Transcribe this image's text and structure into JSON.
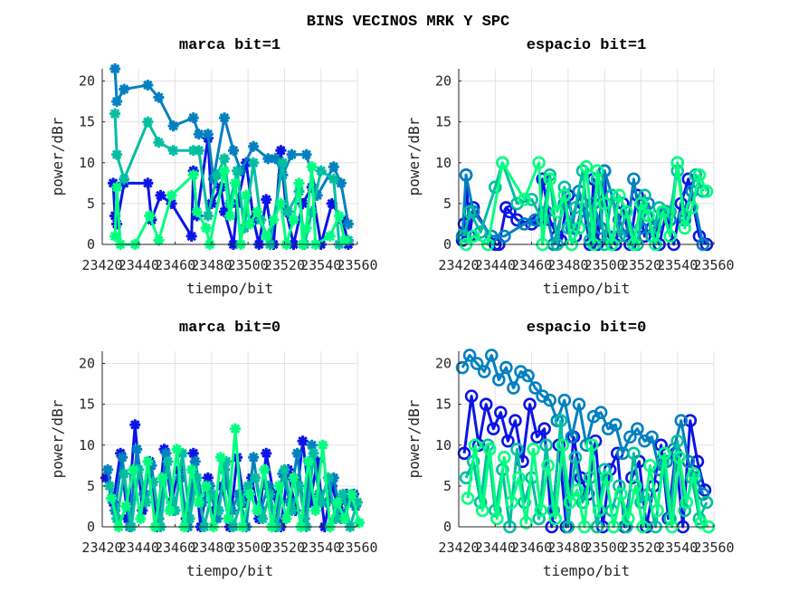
{
  "figure_title": "BINS VECINOS MRK Y SPC",
  "colors": [
    "#0a14e6",
    "#0080c0",
    "#00bfa0",
    "#00ff80"
  ],
  "chart_data": [
    {
      "type": "line",
      "title": "marca bit=1",
      "xlabel": "tiempo/bit",
      "ylabel": "power/dBr",
      "marker": "asterisk",
      "xlim": [
        23420,
        23560
      ],
      "ylim": [
        0,
        21.5
      ],
      "xticks": [
        "23420",
        "23440",
        "23460",
        "23480",
        "23500",
        "23520",
        "23540",
        "23560"
      ],
      "yticks": [
        "0",
        "5",
        "10",
        "15",
        "20"
      ],
      "grid": true,
      "series": [
        {
          "x": [
            23426,
            23427,
            23428,
            23432,
            23445,
            23447,
            23452,
            23458,
            23469,
            23470,
            23472,
            23478,
            23480,
            23485,
            23487,
            23492,
            23494,
            23499,
            23503,
            23506,
            23510,
            23514,
            23518,
            23521,
            23525,
            23530,
            23535,
            23540,
            23546,
            23552,
            23555
          ],
          "y": [
            7.5,
            3.5,
            2.5,
            7.5,
            7.5,
            3,
            6,
            5,
            1,
            9,
            3.5,
            13,
            5,
            7,
            4,
            0,
            5,
            10,
            3,
            0,
            5.5,
            0,
            11.5,
            4,
            0,
            5,
            7,
            0,
            5,
            3,
            0
          ]
        },
        {
          "x": [
            23427,
            23428,
            23432,
            23445,
            23451,
            23459,
            23470,
            23473,
            23478,
            23481,
            23487,
            23492,
            23496,
            23503,
            23511,
            23515,
            23519,
            23524,
            23532,
            23538,
            23547,
            23551,
            23555
          ],
          "y": [
            21.5,
            17.5,
            19,
            19.5,
            18,
            14.5,
            15.5,
            13.5,
            13.5,
            8,
            15.5,
            11.5,
            9,
            12,
            10.5,
            10.5,
            8.5,
            11,
            11,
            6,
            9.5,
            7.5,
            2.5
          ]
        },
        {
          "x": [
            23427,
            23428,
            23432,
            23445,
            23451,
            23459,
            23470,
            23473,
            23478,
            23483,
            23487,
            23490,
            23494,
            23498,
            23503,
            23507,
            23512,
            23519,
            23522,
            23528,
            23531,
            23535,
            23540,
            23547,
            23550,
            23555
          ],
          "y": [
            16,
            11,
            8,
            15,
            12.5,
            11.5,
            11.5,
            11.5,
            3.5,
            8.5,
            10.5,
            5,
            9,
            2,
            10,
            3,
            0,
            10,
            4,
            6.5,
            0,
            4,
            9,
            8,
            0,
            0.5
          ]
        },
        {
          "x": [
            23427,
            23428,
            23430,
            23438,
            23446,
            23451,
            23458,
            23470,
            23472,
            23477,
            23479,
            23487,
            23490,
            23493,
            23496,
            23499,
            23501,
            23505,
            23510,
            23514,
            23518,
            23521,
            23525,
            23528,
            23530,
            23532,
            23535,
            23537,
            23545,
            23550,
            23553
          ],
          "y": [
            1,
            7,
            0,
            0,
            3.5,
            0.5,
            6,
            8.5,
            4,
            2,
            0,
            9,
            3.5,
            7.5,
            0,
            6,
            2.5,
            4,
            1,
            3,
            5,
            0,
            3,
            7.5,
            0,
            2,
            9.5,
            0,
            1,
            3.5,
            0.5
          ]
        }
      ]
    },
    {
      "type": "line",
      "title": "espacio bit=1",
      "xlabel": "tiempo/bit",
      "ylabel": "power/dBr",
      "marker": "circle",
      "xlim": [
        23420,
        23560
      ],
      "ylim": [
        0,
        21.5
      ],
      "xticks": [
        "23420",
        "23440",
        "23460",
        "23480",
        "23500",
        "23520",
        "23540",
        "23560"
      ],
      "yticks": [
        "0",
        "5",
        "10",
        "15",
        "20"
      ],
      "grid": true,
      "series": [
        {
          "x": [
            23422,
            23423,
            23424,
            23426,
            23428,
            23440,
            23442,
            23446,
            23448,
            23452,
            23460,
            23464,
            23466,
            23470,
            23474,
            23476,
            23480,
            23484,
            23488,
            23492,
            23494,
            23496,
            23500,
            23502,
            23506,
            23510,
            23514,
            23518,
            23522,
            23526,
            23530,
            23534,
            23538,
            23542,
            23546,
            23552,
            23556
          ],
          "y": [
            0.5,
            2.5,
            8.5,
            1,
            4.5,
            0,
            0,
            4.5,
            4,
            3,
            2.5,
            3,
            8,
            3,
            1,
            0.5,
            6,
            1,
            5,
            0,
            8,
            0,
            9,
            1,
            0,
            5,
            0,
            6,
            1,
            2,
            0,
            4,
            0,
            5,
            8,
            1,
            0
          ]
        },
        {
          "x": [
            23422,
            23424,
            23428,
            23438,
            23445,
            23456,
            23462,
            23468,
            23472,
            23478,
            23482,
            23486,
            23490,
            23494,
            23498,
            23500,
            23504,
            23508,
            23512,
            23516,
            23520,
            23524,
            23528,
            23532,
            23536,
            23540,
            23544,
            23548,
            23554
          ],
          "y": [
            1,
            8.5,
            4,
            1,
            1,
            2.5,
            3,
            4,
            0,
            5,
            2,
            6.5,
            3,
            5,
            2,
            9,
            6,
            3,
            1,
            8,
            2,
            5,
            2,
            4,
            3,
            10,
            3,
            6.5,
            0
          ]
        },
        {
          "x": [
            23423,
            23426,
            23432,
            23440,
            23444,
            23452,
            23460,
            23466,
            23470,
            23474,
            23478,
            23480,
            23484,
            23488,
            23492,
            23496,
            23500,
            23504,
            23508,
            23512,
            23518,
            23522,
            23526,
            23530,
            23536,
            23540,
            23544,
            23550,
            23554
          ],
          "y": [
            1,
            4,
            1.5,
            7,
            10,
            5,
            5.5,
            3,
            8.5,
            0,
            7,
            2,
            4.5,
            9,
            0.5,
            8,
            0,
            6,
            1,
            4,
            0,
            6,
            1,
            4.5,
            4,
            9,
            3.5,
            8.5,
            6.5
          ]
        },
        {
          "x": [
            23424,
            23428,
            23436,
            23444,
            23456,
            23464,
            23466,
            23470,
            23474,
            23478,
            23482,
            23486,
            23490,
            23494,
            23496,
            23500,
            23504,
            23508,
            23512,
            23516,
            23520,
            23524,
            23528,
            23532,
            23536,
            23540,
            23544,
            23548,
            23552,
            23556
          ],
          "y": [
            0,
            1,
            0,
            10,
            5.5,
            10,
            0,
            8,
            4,
            6,
            0,
            2,
            9.5,
            0,
            9,
            5,
            0,
            6,
            4,
            0,
            5,
            3.5,
            0,
            4,
            1,
            10,
            2,
            4.5,
            8.5,
            6.5
          ]
        }
      ]
    },
    {
      "type": "line",
      "title": "marca bit=0",
      "xlabel": "tiempo/bit",
      "ylabel": "power/dBr",
      "marker": "asterisk",
      "xlim": [
        23420,
        23560
      ],
      "ylim": [
        0,
        21.5
      ],
      "xticks": [
        "23420",
        "23440",
        "23460",
        "23480",
        "23500",
        "23520",
        "23540",
        "23560"
      ],
      "yticks": [
        "0",
        "5",
        "10",
        "15",
        "20"
      ],
      "grid": true,
      "series": [
        {
          "x_start": 23422,
          "x_step": 4,
          "y": [
            6,
            3,
            9,
            1,
            12.5,
            2,
            8,
            0,
            9.5,
            3,
            7,
            1,
            9,
            0,
            6,
            2,
            5,
            0,
            8.5,
            3,
            6,
            1,
            9,
            4,
            0,
            7,
            2,
            10.5,
            3,
            8,
            0,
            5,
            2,
            4,
            4
          ]
        },
        {
          "x_start": 23423,
          "x_step": 4,
          "y": [
            7,
            2,
            8.5,
            0,
            9.5,
            4,
            7.5,
            1,
            9,
            2,
            6,
            0,
            8,
            3,
            5,
            1,
            7,
            2,
            4,
            0,
            8.5,
            2,
            5,
            0,
            6.5,
            3,
            9,
            1,
            10,
            4,
            3,
            6,
            1,
            3,
            2.5
          ]
        },
        {
          "x_start": 23424,
          "x_step": 4,
          "y": [
            5,
            1,
            6.5,
            0,
            7,
            3,
            5.5,
            0,
            8,
            2,
            9,
            1,
            6,
            0,
            4,
            2,
            8,
            0,
            3,
            5,
            6,
            1,
            4,
            0,
            7,
            2,
            5,
            0,
            9,
            3,
            6,
            1,
            4,
            0,
            3
          ]
        },
        {
          "x_start": 23425,
          "x_step": 4,
          "y": [
            3.5,
            0,
            2.5,
            7,
            1,
            8,
            0,
            6,
            2,
            9.5,
            0,
            7,
            3,
            5,
            0,
            8.5,
            1,
            12,
            0,
            4,
            2,
            7,
            0,
            5,
            1,
            6,
            0,
            8,
            2,
            10,
            0,
            3,
            1,
            4,
            0.5
          ]
        }
      ]
    },
    {
      "type": "line",
      "title": "espacio bit=0",
      "xlabel": "tiempo/bit",
      "ylabel": "power/dBr",
      "marker": "circle",
      "xlim": [
        23420,
        23560
      ],
      "ylim": [
        0,
        21.5
      ],
      "xticks": [
        "23420",
        "23440",
        "23460",
        "23480",
        "23500",
        "23520",
        "23540",
        "23560"
      ],
      "yticks": [
        "0",
        "5",
        "10",
        "15",
        "20"
      ],
      "grid": true,
      "series": [
        {
          "x_start": 23423,
          "x_step": 4,
          "y": [
            9,
            16,
            10,
            15,
            12,
            14,
            10.5,
            13,
            8,
            15,
            11,
            12,
            0,
            10,
            0,
            11,
            6,
            4,
            10.5,
            0,
            7,
            9,
            0,
            6,
            8,
            0,
            5,
            10,
            1,
            9,
            0,
            13,
            8,
            4.5
          ]
        },
        {
          "x_start": 23422,
          "x_step": 4,
          "y": [
            19.5,
            21,
            20,
            19,
            21,
            18,
            19.5,
            17,
            19,
            18.5,
            17,
            16,
            15.5,
            13,
            15.5,
            11,
            15,
            10,
            13.5,
            14,
            12,
            12.5,
            9,
            11,
            12,
            10.5,
            11,
            7,
            8,
            9.5,
            13,
            8,
            6,
            4
          ]
        },
        {
          "x_start": 23424,
          "x_step": 4,
          "y": [
            6,
            8,
            3,
            10,
            2,
            7,
            0,
            9.5,
            3,
            6,
            1,
            10,
            2,
            13,
            0,
            8.5,
            3,
            6,
            0,
            7,
            2,
            5,
            0,
            9,
            3,
            4,
            0,
            8,
            1,
            10.5,
            2,
            6,
            1,
            3
          ]
        },
        {
          "x_start": 23425,
          "x_step": 4,
          "y": [
            3.5,
            10,
            2,
            9.5,
            1,
            8.5,
            3,
            6,
            0.5,
            9.5,
            2,
            7.5,
            1,
            10,
            3,
            4.5,
            0,
            10,
            2,
            6,
            0,
            4,
            1,
            5,
            0,
            7.5,
            2,
            9,
            0,
            8.5,
            3,
            6.5,
            0.5,
            0
          ]
        }
      ]
    }
  ]
}
